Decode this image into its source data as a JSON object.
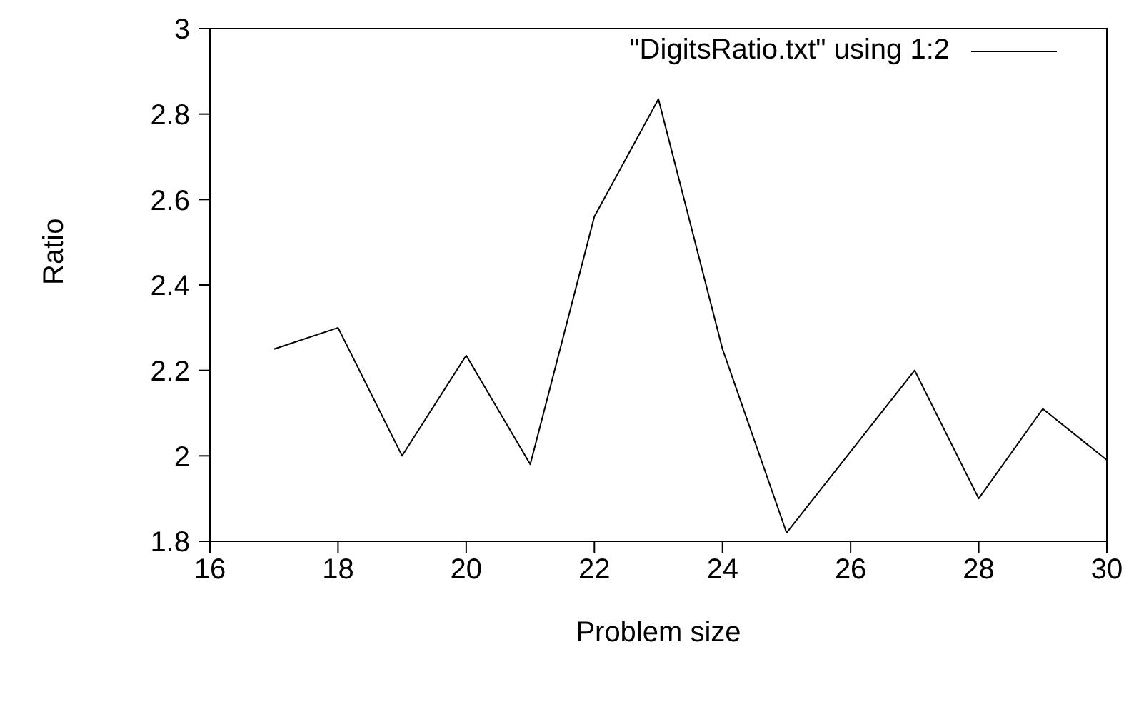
{
  "chart_data": {
    "type": "line",
    "xlabel": "Problem size",
    "ylabel": "Ratio",
    "x": [
      17,
      18,
      19,
      20,
      21,
      22,
      23,
      24,
      25,
      26,
      27,
      28,
      29,
      30
    ],
    "series": [
      {
        "name": "\"DigitsRatio.txt\" using 1:2",
        "color": "#000000",
        "values": [
          2.25,
          2.3,
          2.0,
          2.235,
          1.98,
          2.56,
          2.835,
          2.25,
          1.82,
          2.01,
          2.2,
          1.9,
          2.11,
          1.99
        ]
      }
    ],
    "xlim": [
      16,
      30
    ],
    "xticks": [
      16,
      18,
      20,
      22,
      24,
      26,
      28,
      30
    ],
    "ylim": [
      1.8,
      3
    ],
    "yticks": [
      1.8,
      2,
      2.2,
      2.4,
      2.6,
      2.8,
      3
    ],
    "grid": false,
    "legend": "top right",
    "marker": "none",
    "line_style": "solid"
  }
}
